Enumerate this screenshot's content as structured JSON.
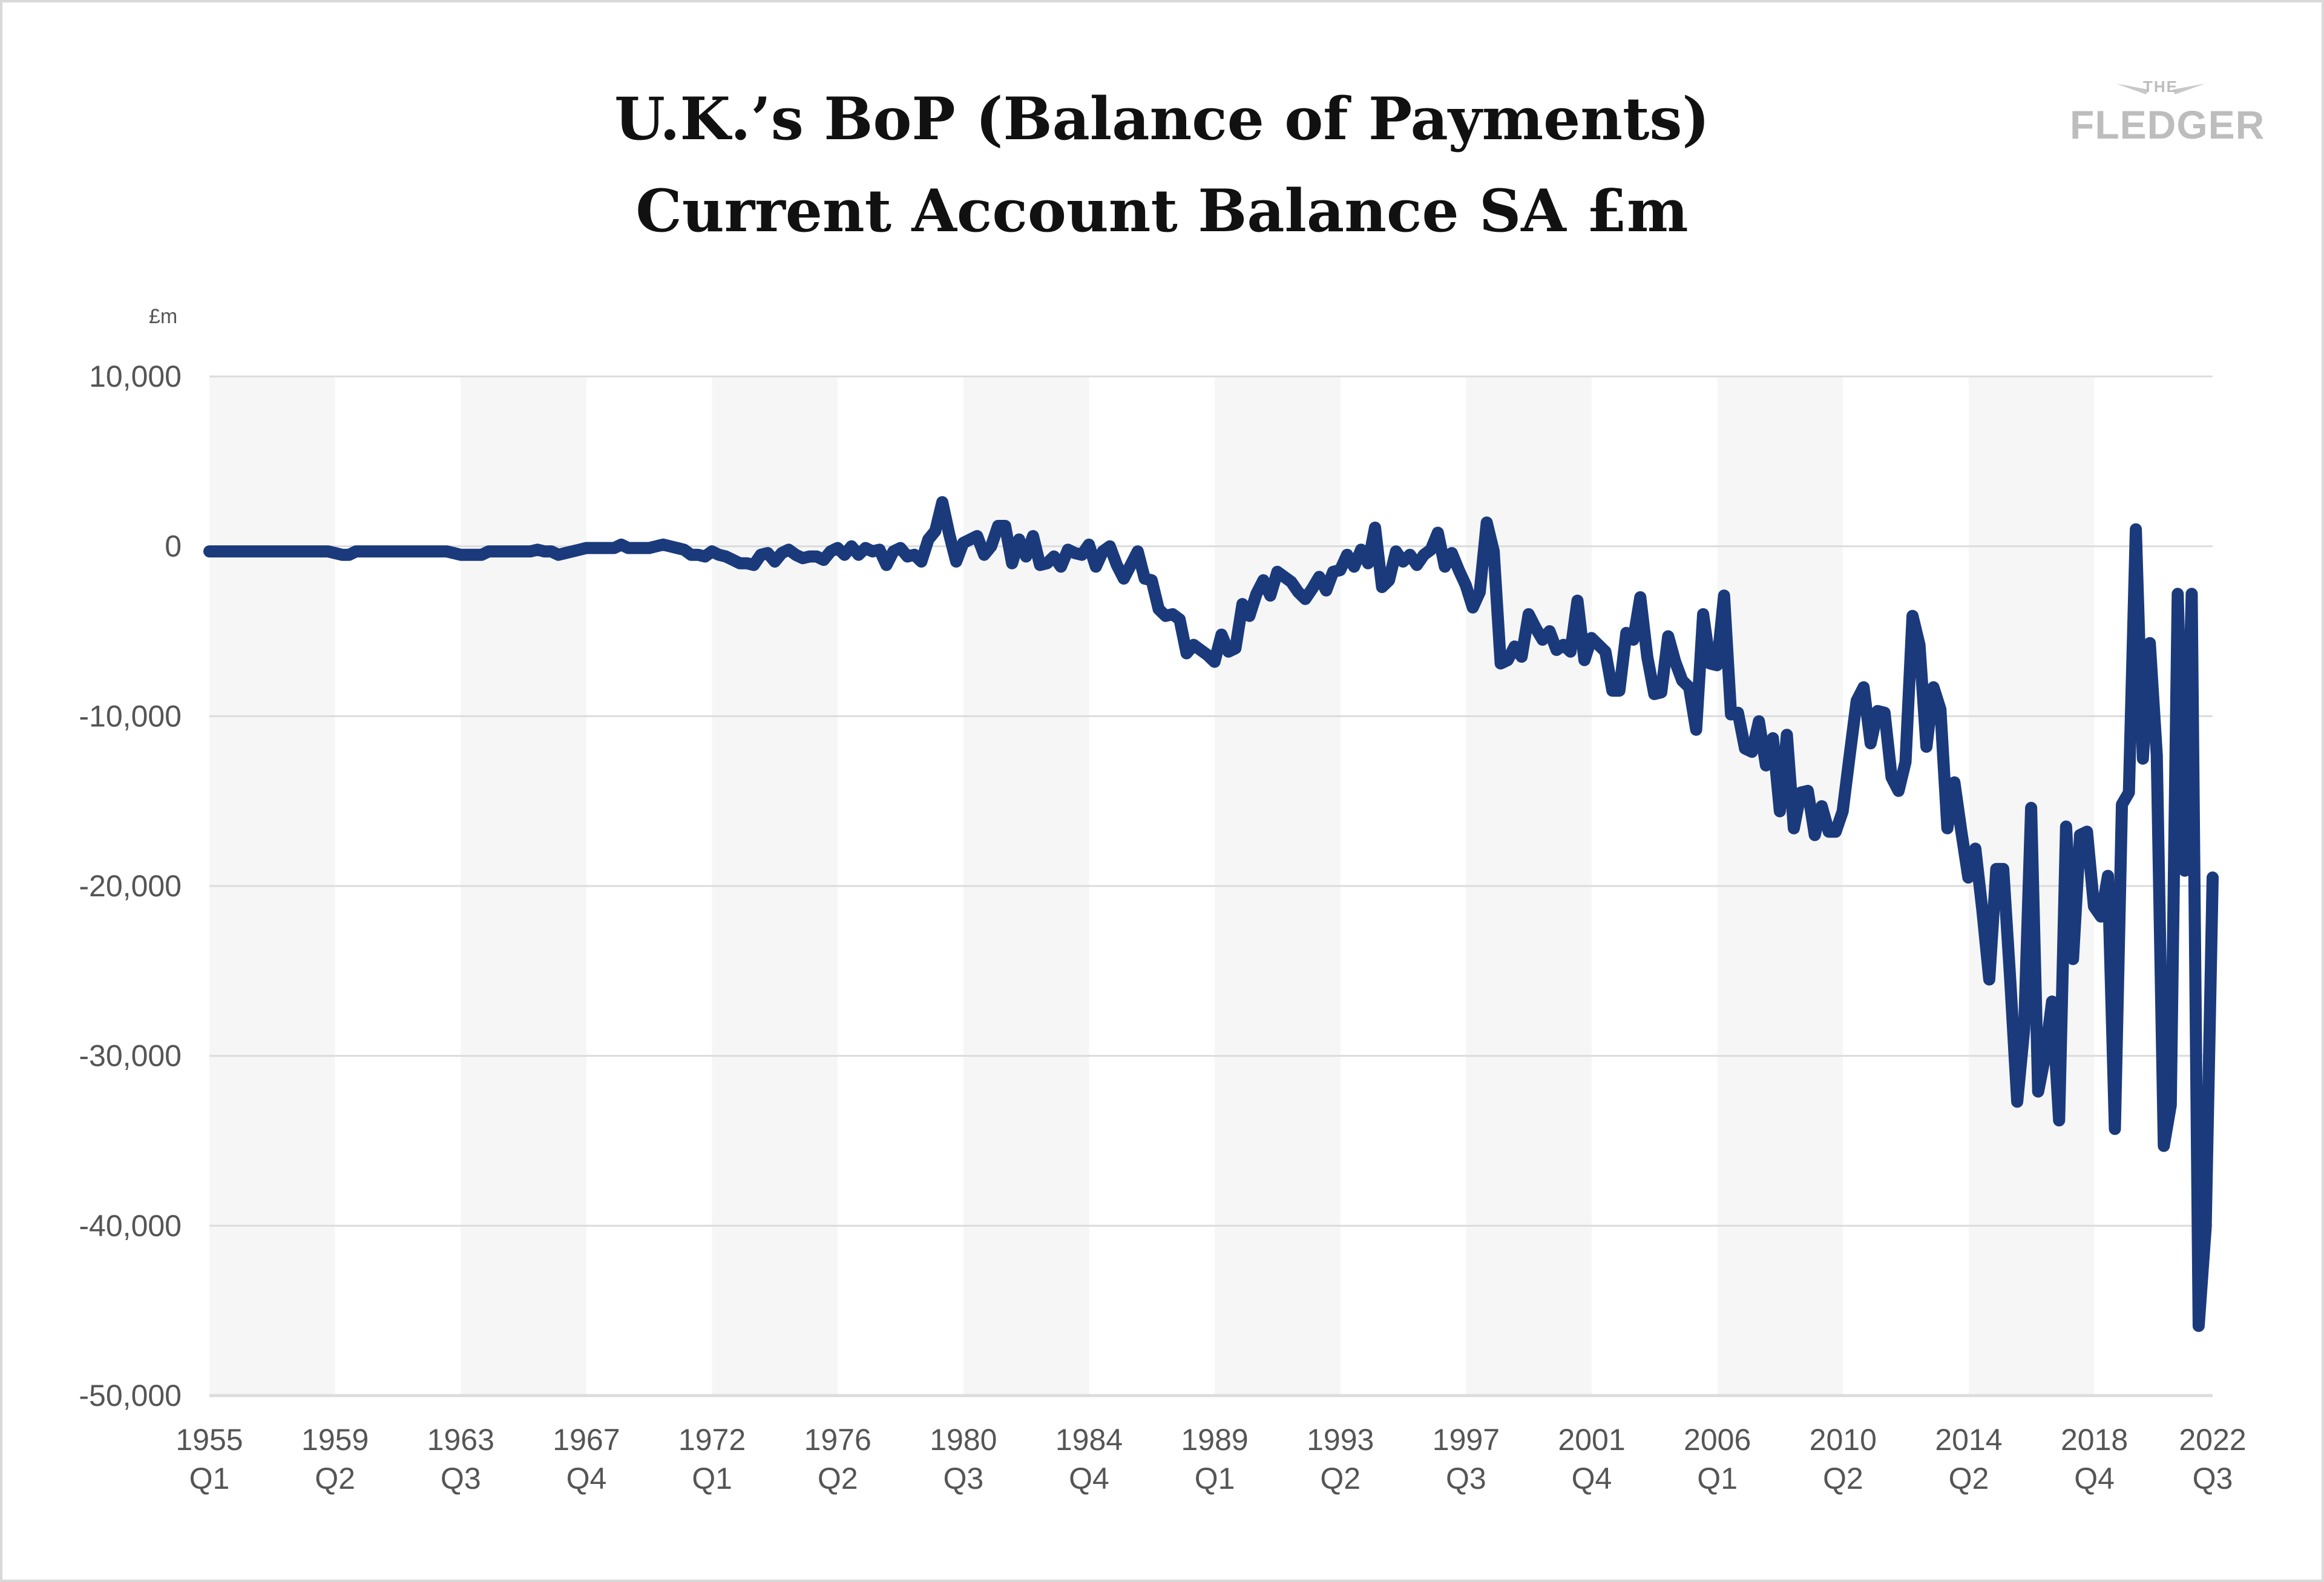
{
  "title_line1": "U.K.’s BoP (Balance of Payments)",
  "title_line2": "Current Account Balance SA £m",
  "logo": {
    "small": "THE",
    "name": "FLEDGER"
  },
  "colors": {
    "line": "#1a3a7c",
    "band": "#f6f6f6",
    "grid": "#dcdcdc",
    "axis_text": "#555555"
  },
  "chart_data": {
    "type": "line",
    "title": "U.K.’s BoP (Balance of Payments) Current Account Balance SA £m",
    "ylabel": "£m",
    "ylim": [
      -50000,
      10000
    ],
    "yticks": [
      10000,
      0,
      -10000,
      -20000,
      -30000,
      -40000,
      -50000
    ],
    "ytick_labels": [
      "10,000",
      "0",
      "-10,000",
      "-20,000",
      "-30,000",
      "-40,000",
      "-50,000"
    ],
    "xticks": [
      {
        "line1": "1955",
        "line2": "Q1",
        "q": 0
      },
      {
        "line1": "1959",
        "line2": "Q2",
        "q": 17
      },
      {
        "line1": "1963",
        "line2": "Q3",
        "q": 34
      },
      {
        "line1": "1967",
        "line2": "Q4",
        "q": 51
      },
      {
        "line1": "1972",
        "line2": "Q1",
        "q": 68
      },
      {
        "line1": "1976",
        "line2": "Q2",
        "q": 85
      },
      {
        "line1": "1980",
        "line2": "Q3",
        "q": 102
      },
      {
        "line1": "1984",
        "line2": "Q4",
        "q": 119
      },
      {
        "line1": "1989",
        "line2": "Q1",
        "q": 136
      },
      {
        "line1": "1993",
        "line2": "Q2",
        "q": 153
      },
      {
        "line1": "1997",
        "line2": "Q3",
        "q": 170
      },
      {
        "line1": "2001",
        "line2": "Q4",
        "q": 187
      },
      {
        "line1": "2006",
        "line2": "Q1",
        "q": 204
      },
      {
        "line1": "2010",
        "line2": "Q2",
        "q": 221
      },
      {
        "line1": "2014",
        "line2": "Q2",
        "q": 238
      },
      {
        "line1": "2018",
        "line2": "Q4",
        "q": 255
      },
      {
        "line1": "2022",
        "line2": "Q3",
        "q": 271
      }
    ],
    "grid": true,
    "legend": "none",
    "series": [
      {
        "values": [
          -300,
          -300,
          -300,
          -300,
          -300,
          -300,
          -300,
          -300,
          -300,
          -300,
          -300,
          -300,
          -300,
          -300,
          -300,
          -300,
          -300,
          -300,
          -400,
          -500,
          -500,
          -300,
          -300,
          -300,
          -300,
          -300,
          -300,
          -300,
          -300,
          -300,
          -300,
          -300,
          -300,
          -300,
          -300,
          -400,
          -500,
          -500,
          -500,
          -500,
          -300,
          -300,
          -300,
          -300,
          -300,
          -300,
          -300,
          -200,
          -300,
          -300,
          -500,
          -400,
          -300,
          -200,
          -100,
          -100,
          -100,
          -100,
          -100,
          100,
          -100,
          -100,
          -100,
          -100,
          0,
          100,
          0,
          -100,
          -200,
          -500,
          -500,
          -600,
          -300,
          -500,
          -600,
          -800,
          -1000,
          -1000,
          -1100,
          -500,
          -400,
          -900,
          -400,
          -200,
          -500,
          -700,
          -600,
          -600,
          -800,
          -300,
          -100,
          -500,
          0,
          -500,
          -100,
          -300,
          -200,
          -1100,
          -300,
          -100,
          -600,
          -500,
          -900,
          400,
          900,
          2600,
          700,
          -900,
          200,
          400,
          600,
          -500,
          0,
          1200,
          1200,
          -1000,
          400,
          -600,
          600,
          -1100,
          -1000,
          -600,
          -1200,
          -200,
          -400,
          -500,
          100,
          -1200,
          -300,
          0,
          -1100,
          -1900,
          -1100,
          -300,
          -1900,
          -2000,
          -3700,
          -4100,
          -4000,
          -4300,
          -6300,
          -5800,
          -6100,
          -6400,
          -6800,
          -5200,
          -6200,
          -6000,
          -3400,
          -4100,
          -2800,
          -2000,
          -2900,
          -1500,
          -1800,
          -2100,
          -2700,
          -3100,
          -2500,
          -1800,
          -2600,
          -1500,
          -1400,
          -500,
          -1200,
          -200,
          -1000,
          1100,
          -2400,
          -2000,
          -300,
          -900,
          -500,
          -1100,
          -500,
          -200,
          800,
          -1200,
          -400,
          -1400,
          -2300,
          -3600,
          -2700,
          1400,
          -300,
          -6900,
          -6700,
          -5900,
          -6500,
          -4000,
          -4800,
          -5500,
          -5000,
          -6100,
          -5800,
          -6200,
          -3200,
          -6700,
          -5400,
          -5800,
          -6200,
          -8500,
          -8500,
          -5100,
          -5500,
          -3000,
          -6500,
          -8700,
          -8600,
          -5300,
          -6800,
          -7900,
          -8300,
          -10800,
          -4000,
          -6900,
          -7000,
          -2900,
          -9900,
          -9800,
          -11900,
          -12100,
          -10300,
          -12900,
          -11300,
          -15600,
          -11100,
          -16600,
          -14500,
          -14400,
          -17000,
          -15300,
          -16800,
          -16800,
          -15600,
          -12300,
          -9100,
          -8300,
          -11600,
          -9700,
          -9800,
          -13600,
          -14400,
          -12700,
          -4100,
          -5800,
          -11800,
          -8300,
          -9600,
          -16600,
          -13900,
          -16800,
          -19500,
          -17800,
          -21400,
          -25500,
          -19000,
          -19000,
          -25500,
          -32700,
          -28400,
          -15400,
          -32100,
          -30000,
          -26800,
          -33800,
          -16500,
          -24300,
          -17000,
          -16800,
          -21200,
          -21800,
          -19400,
          -34300,
          -15200,
          -14500,
          1000,
          -12500,
          -5700,
          -12300,
          -35300,
          -32900,
          -2800,
          -19100,
          -2800,
          -45900,
          -40100,
          -19500
        ]
      }
    ]
  }
}
